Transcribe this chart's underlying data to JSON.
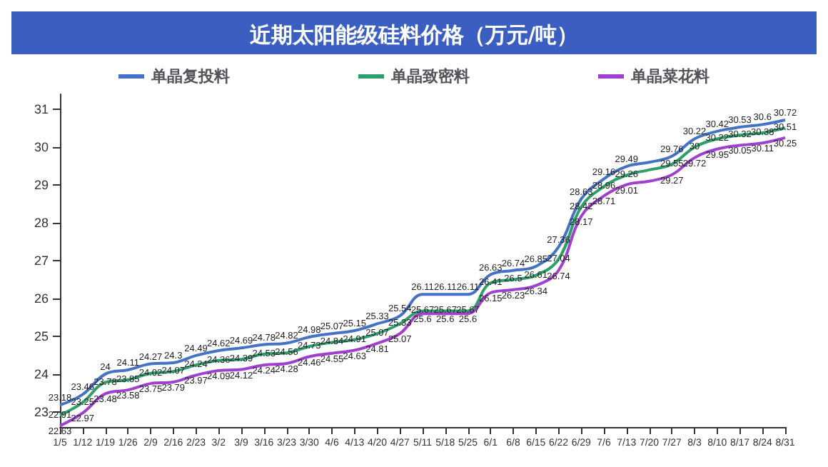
{
  "chart_data": {
    "type": "line",
    "title": "近期太阳能级硅料价格（万元/吨）",
    "categories": [
      "1/5",
      "1/12",
      "1/19",
      "1/26",
      "2/9",
      "2/16",
      "2/23",
      "3/2",
      "3/9",
      "3/16",
      "3/23",
      "3/30",
      "4/6",
      "4/13",
      "4/20",
      "4/27",
      "5/11",
      "5/18",
      "5/25",
      "6/1",
      "6/8",
      "6/15",
      "6/22",
      "6/29",
      "7/6",
      "7/13",
      "7/20",
      "7/27",
      "8/3",
      "8/10",
      "8/17",
      "8/24",
      "8/31"
    ],
    "series": [
      {
        "name": "单晶复投料",
        "color": "#4472c4",
        "values": [
          23.18,
          23.46,
          24,
          24.11,
          24.27,
          24.3,
          24.49,
          24.62,
          24.69,
          24.78,
          24.82,
          24.98,
          25.07,
          25.15,
          25.33,
          25.54,
          26.11,
          26.11,
          26.11,
          26.63,
          26.74,
          26.85,
          27.36,
          28.63,
          29.16,
          29.49,
          29.6,
          29.76,
          30.22,
          30.42,
          30.53,
          30.6,
          30.72
        ],
        "value_labels": [
          "23.18",
          "23.46",
          "24",
          "24.11",
          "24.27",
          "24.3",
          "24.49",
          "24.62",
          "24.69",
          "24.78",
          "24.82",
          "24.98",
          "25.07",
          "25.15",
          "25.33",
          "25.54",
          "26.11",
          "26.11",
          "26.11",
          "26.63",
          "26.74",
          "26.85",
          "27.36",
          "28.63",
          "29.16",
          "29.49",
          null,
          "29.76",
          "30.22",
          "30.42",
          "30.53",
          "30.6",
          "30.72"
        ]
      },
      {
        "name": "单晶致密料",
        "color": "#2e9e6b",
        "values": [
          22.91,
          23.25,
          23.78,
          23.85,
          24.02,
          24.07,
          24.24,
          24.36,
          24.39,
          24.53,
          24.56,
          24.73,
          24.84,
          24.91,
          25.07,
          25.33,
          25.67,
          25.67,
          25.67,
          26.41,
          26.5,
          26.61,
          27.04,
          28.42,
          28.96,
          29.26,
          29.4,
          29.55,
          30,
          30.22,
          30.32,
          30.38,
          30.51
        ],
        "value_labels": [
          "22.91",
          "23.25",
          "23.78",
          "23.85",
          "24.02",
          "24.07",
          "24.24",
          "24.36",
          "24.39",
          "24.53",
          "24.56",
          "24.73",
          "24.84",
          "24.91",
          "25.07",
          "25.33",
          "25.67",
          "25.67",
          "25.67",
          "26.41",
          "26.5",
          "26.61",
          "27.04",
          "28.42",
          "28.96",
          "29.26",
          null,
          "29.55",
          "30",
          "30.22",
          "30.32",
          "30.38",
          "30.51"
        ]
      },
      {
        "name": "单晶菜花料",
        "color": "#a040d0",
        "values": [
          22.63,
          22.97,
          23.48,
          23.58,
          23.75,
          23.79,
          23.97,
          24.09,
          24.12,
          24.24,
          24.28,
          24.46,
          24.55,
          24.63,
          24.81,
          25.07,
          25.6,
          25.6,
          25.6,
          26.15,
          26.23,
          26.34,
          26.74,
          28.17,
          28.71,
          29.01,
          29.1,
          29.27,
          29.72,
          29.95,
          30.05,
          30.11,
          30.25
        ],
        "value_labels": [
          "22.63",
          "22.97",
          "23.48",
          "23.58",
          "23.75",
          "23.79",
          "23.97",
          "24.09",
          "24.12",
          "24.24",
          "24.28",
          "24.46",
          "24.55",
          "24.63",
          "24.81",
          "25.07",
          "25.6",
          "25.6",
          "25.6",
          "26.15",
          "26.23",
          "26.34",
          "26.74",
          "28.17",
          "28.71",
          "29.01",
          null,
          "29.27",
          "29.72",
          "29.95",
          "30.05",
          "30.11",
          "30.25"
        ]
      }
    ],
    "ylim": [
      22.6,
      31.4
    ],
    "yticks": [
      23,
      24,
      25,
      26,
      27,
      28,
      29,
      30,
      31
    ],
    "grid": false,
    "legend": "top",
    "marker": "none",
    "line_style": "solid"
  }
}
